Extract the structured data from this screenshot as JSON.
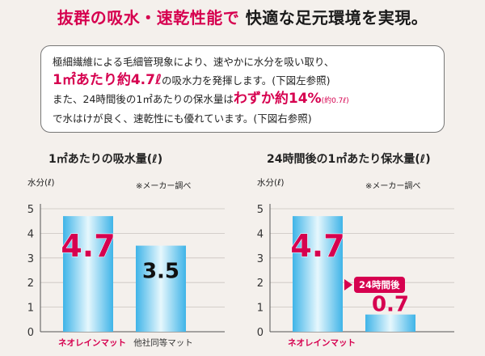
{
  "headline": {
    "part1": "抜群の吸水・速乾性能で",
    "part2": "快適な足元環境を実現。"
  },
  "info": {
    "line1": "極細繊維による毛細管現象により、速やかに水分を吸い取り、",
    "line2_big": "1㎡あたり約4.7ℓ",
    "line2_rest": "の吸水力を発揮します。(下図左参照)",
    "line3_pre": "また、24時間後の1㎡あたりの保水量は",
    "line3_big": "わずか約14%",
    "line3_small": "(約0.7ℓ)",
    "line4": "で水はけが良く、速乾性にも優れています。(下図右参照)"
  },
  "colors": {
    "accent": "#d6004f",
    "bar_edge": "#3fb4e8",
    "bar_mid": "#e6f7fd"
  },
  "chart_data": [
    {
      "type": "bar",
      "title": "1㎡あたりの吸水量(ℓ)",
      "ylabel": "水分(ℓ)",
      "source": "※メーカー調べ",
      "ylim": [
        0,
        5
      ],
      "yticks": [
        "0",
        "1",
        "2",
        "3",
        "4",
        "5"
      ],
      "categories": [
        "ネオレインマット",
        "他社同等マット"
      ],
      "values": [
        4.7,
        3.5
      ],
      "value_labels": [
        "4.7",
        "3.5"
      ],
      "grid": true
    },
    {
      "type": "bar",
      "title": "24時間後の1㎡あたり保水量(ℓ)",
      "ylabel": "水分(ℓ)",
      "source": "※メーカー調べ",
      "ylim": [
        0,
        5
      ],
      "yticks": [
        "0",
        "1",
        "2",
        "3",
        "4",
        "5"
      ],
      "categories": [
        "ネオレインマット",
        "24時間後"
      ],
      "values": [
        4.7,
        0.7
      ],
      "value_labels": [
        "4.7",
        "0.7"
      ],
      "badge": "24時間後",
      "grid": true
    }
  ]
}
